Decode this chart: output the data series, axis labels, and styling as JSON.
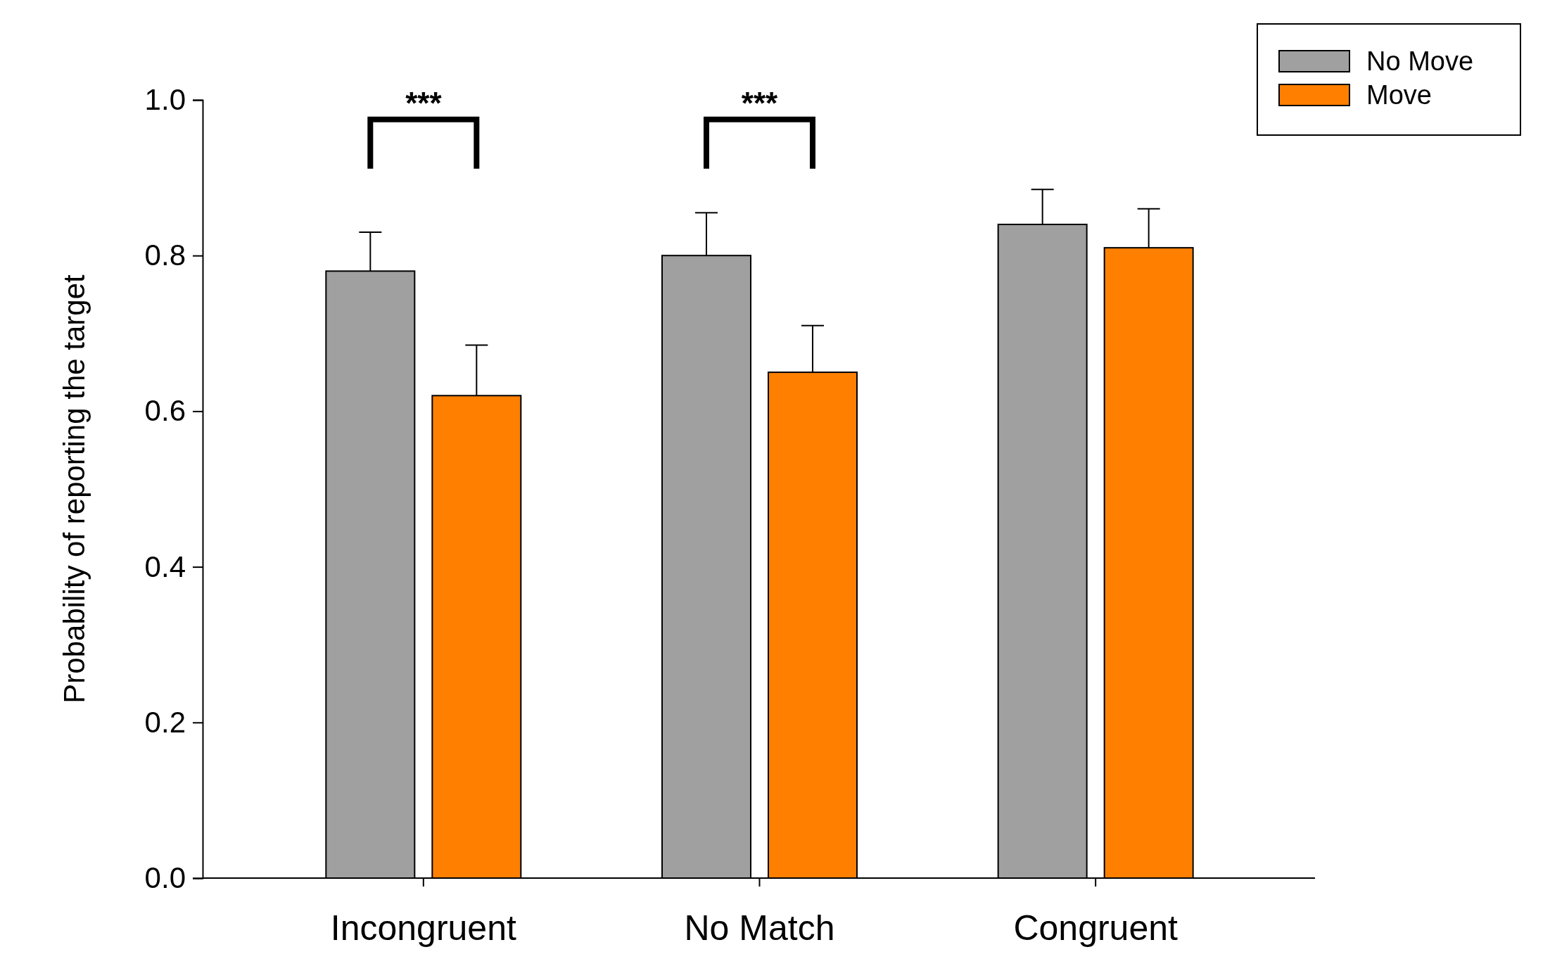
{
  "chart_data": {
    "type": "bar",
    "ylabel": "Probability of reporting the target",
    "categories": [
      "Incongruent",
      "No Match",
      "Congruent"
    ],
    "series": [
      {
        "name": "No Move",
        "color": "#a0a0a0",
        "values": [
          0.78,
          0.8,
          0.84
        ],
        "errors": [
          [
            0.78,
            0.83
          ],
          [
            0.8,
            0.855
          ],
          [
            0.84,
            0.885
          ]
        ]
      },
      {
        "name": "Move",
        "color": "#ff8000",
        "values": [
          0.62,
          0.65,
          0.81
        ],
        "errors": [
          [
            0.62,
            0.685
          ],
          [
            0.65,
            0.71
          ],
          [
            0.81,
            0.86
          ]
        ]
      }
    ],
    "ylim": [
      0,
      1
    ],
    "yticks": [
      {
        "value": 0,
        "label": "0.0"
      },
      {
        "value": 0.2,
        "label": "0.2"
      },
      {
        "value": 0.4,
        "label": "0.4"
      },
      {
        "value": 0.6,
        "label": "0.6"
      },
      {
        "value": 0.8,
        "label": "0.8"
      },
      {
        "value": 1,
        "label": "1.0"
      }
    ],
    "grid": false,
    "legend": "top right",
    "annotations": [
      "***",
      "***"
    ]
  }
}
